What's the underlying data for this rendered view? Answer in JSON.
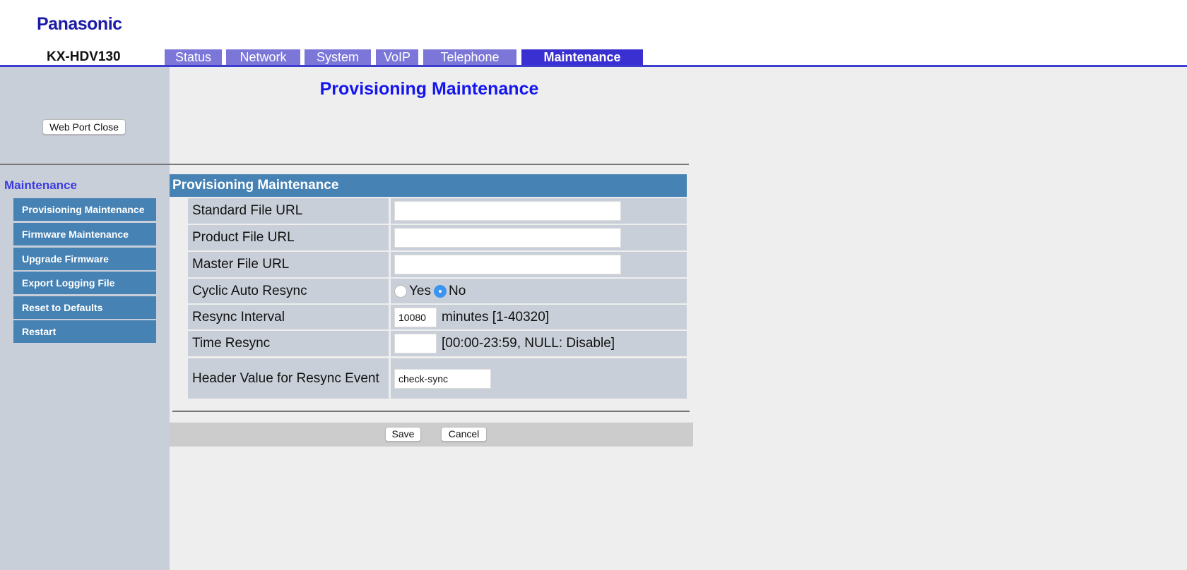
{
  "header": {
    "logo": "Panasonic",
    "model": "KX-HDV130",
    "tabs": [
      {
        "label": "Status"
      },
      {
        "label": "Network"
      },
      {
        "label": "System"
      },
      {
        "label": "VoIP"
      },
      {
        "label": "Telephone"
      },
      {
        "label": "Maintenance",
        "active": true
      }
    ]
  },
  "page_title": "Provisioning Maintenance",
  "sidebar": {
    "web_port_close": "Web Port Close",
    "section": "Maintenance",
    "items": [
      {
        "label": "Provisioning Maintenance"
      },
      {
        "label": "Firmware Maintenance"
      },
      {
        "label": "Upgrade Firmware"
      },
      {
        "label": "Export Logging File"
      },
      {
        "label": "Reset to Defaults"
      },
      {
        "label": "Restart"
      }
    ]
  },
  "form": {
    "section_title": "Provisioning Maintenance",
    "standard_file_url": {
      "label": "Standard File URL",
      "value": ""
    },
    "product_file_url": {
      "label": "Product File URL",
      "value": ""
    },
    "master_file_url": {
      "label": "Master File URL",
      "value": ""
    },
    "cyclic_auto_resync": {
      "label": "Cyclic Auto Resync",
      "yes": "Yes",
      "no": "No",
      "selected": "No"
    },
    "resync_interval": {
      "label": "Resync Interval",
      "value": "10080",
      "hint": "minutes [1-40320]"
    },
    "time_resync": {
      "label": "Time Resync",
      "value": "",
      "hint": "[00:00-23:59, NULL: Disable]"
    },
    "header_value": {
      "label": "Header Value for Resync Event",
      "value": "check-sync"
    }
  },
  "buttons": {
    "save": "Save",
    "cancel": "Cancel"
  },
  "colors": {
    "tab": "#7b76d8",
    "tab_active": "#3a30d2",
    "nav": "#4682b4",
    "title": "#1515ee"
  }
}
